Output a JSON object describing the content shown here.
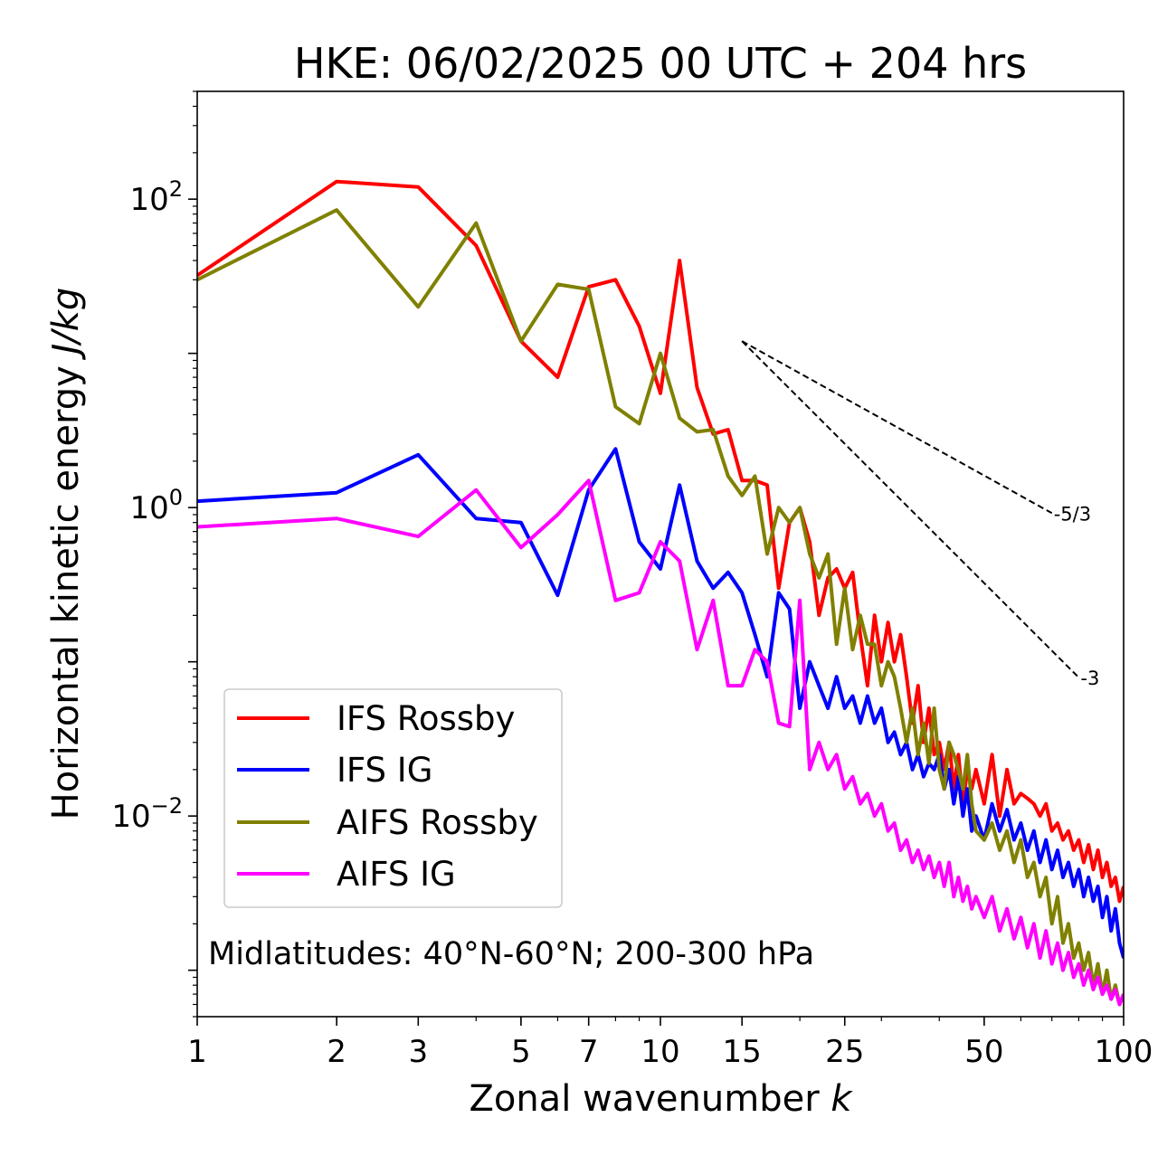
{
  "chart_data": {
    "type": "line",
    "title": "HKE: 06/02/2025 00 UTC + 204 hrs",
    "xlabel_text": "Zonal wavenumber ",
    "xlabel_var": "k",
    "ylabel_text": "Horizontal kinetic energy ",
    "ylabel_unit": "J/kg",
    "xscale": "log",
    "yscale": "log",
    "xlim": [
      1,
      100
    ],
    "ylim": [
      0.0005,
      500
    ],
    "x_ticks": [
      1,
      2,
      3,
      5,
      7,
      10,
      15,
      25,
      50,
      100
    ],
    "x_tick_labels": [
      "1",
      "2",
      "3",
      "5",
      "7",
      "10",
      "15",
      "25",
      "50",
      "100"
    ],
    "y_ticks": [
      {
        "value": 100,
        "base": "10",
        "exp": "2"
      },
      {
        "value": 1,
        "base": "10",
        "exp": "0"
      },
      {
        "value": 0.01,
        "base": "10",
        "exp": "−2"
      }
    ],
    "legend_position": "lower-left",
    "annotation": "Midlatitudes: 40°N-60°N; 200-300 hPa",
    "reference_lines": [
      {
        "label": "-5/3",
        "slope": -1.6667,
        "x_start": 15,
        "y_start": 12,
        "x_end": 70
      },
      {
        "label": "-3",
        "slope": -3,
        "x_start": 15,
        "y_start": 12,
        "x_end": 80
      }
    ],
    "series": [
      {
        "name": "IFS Rossby",
        "color": "#ff0000",
        "points": [
          [
            1,
            32
          ],
          [
            2,
            130
          ],
          [
            3,
            120
          ],
          [
            4,
            50
          ],
          [
            5,
            12
          ],
          [
            6,
            7
          ],
          [
            7,
            27
          ],
          [
            8,
            30
          ],
          [
            9,
            15
          ],
          [
            10,
            5.5
          ],
          [
            11,
            40
          ],
          [
            12,
            6
          ],
          [
            13,
            3
          ],
          [
            14,
            3.2
          ],
          [
            15,
            1.5
          ],
          [
            16,
            1.5
          ],
          [
            17,
            1.4
          ],
          [
            18,
            0.3
          ],
          [
            19,
            0.8
          ],
          [
            20,
            1
          ],
          [
            21,
            0.6
          ],
          [
            22,
            0.2
          ],
          [
            23,
            0.35
          ],
          [
            24,
            0.4
          ],
          [
            25,
            0.3
          ],
          [
            26,
            0.38
          ],
          [
            27,
            0.15
          ],
          [
            28,
            0.07
          ],
          [
            29,
            0.2
          ],
          [
            30,
            0.1
          ],
          [
            31,
            0.18
          ],
          [
            32,
            0.1
          ],
          [
            33,
            0.15
          ],
          [
            34,
            0.08
          ],
          [
            35,
            0.04
          ],
          [
            36,
            0.07
          ],
          [
            37,
            0.03
          ],
          [
            38,
            0.05
          ],
          [
            39,
            0.025
          ],
          [
            40,
            0.03
          ],
          [
            41,
            0.02
          ],
          [
            42,
            0.03
          ],
          [
            43,
            0.015
          ],
          [
            44,
            0.025
          ],
          [
            45,
            0.012
          ],
          [
            46,
            0.02
          ],
          [
            47,
            0.015
          ],
          [
            48,
            0.02
          ],
          [
            50,
            0.012
          ],
          [
            52,
            0.025
          ],
          [
            54,
            0.01
          ],
          [
            56,
            0.02
          ],
          [
            58,
            0.012
          ],
          [
            60,
            0.014
          ],
          [
            62,
            0.013
          ],
          [
            64,
            0.012
          ],
          [
            66,
            0.01
          ],
          [
            68,
            0.012
          ],
          [
            70,
            0.008
          ],
          [
            72,
            0.009
          ],
          [
            74,
            0.007
          ],
          [
            76,
            0.008
          ],
          [
            78,
            0.006
          ],
          [
            80,
            0.007
          ],
          [
            82,
            0.005
          ],
          [
            84,
            0.0065
          ],
          [
            86,
            0.0045
          ],
          [
            88,
            0.006
          ],
          [
            90,
            0.004
          ],
          [
            92,
            0.005
          ],
          [
            94,
            0.0035
          ],
          [
            96,
            0.004
          ],
          [
            98,
            0.0028
          ],
          [
            100,
            0.0035
          ]
        ]
      },
      {
        "name": "IFS IG",
        "color": "#0000ff",
        "points": [
          [
            1,
            1.1
          ],
          [
            2,
            1.25
          ],
          [
            3,
            2.2
          ],
          [
            4,
            0.85
          ],
          [
            5,
            0.8
          ],
          [
            6,
            0.27
          ],
          [
            7,
            1.3
          ],
          [
            8,
            2.4
          ],
          [
            9,
            0.6
          ],
          [
            10,
            0.4
          ],
          [
            11,
            1.4
          ],
          [
            12,
            0.45
          ],
          [
            13,
            0.3
          ],
          [
            14,
            0.38
          ],
          [
            15,
            0.28
          ],
          [
            16,
            0.15
          ],
          [
            17,
            0.08
          ],
          [
            18,
            0.28
          ],
          [
            19,
            0.22
          ],
          [
            20,
            0.05
          ],
          [
            21,
            0.1
          ],
          [
            22,
            0.07
          ],
          [
            23,
            0.05
          ],
          [
            24,
            0.08
          ],
          [
            25,
            0.05
          ],
          [
            26,
            0.06
          ],
          [
            27,
            0.04
          ],
          [
            28,
            0.06
          ],
          [
            29,
            0.04
          ],
          [
            30,
            0.05
          ],
          [
            31,
            0.03
          ],
          [
            32,
            0.035
          ],
          [
            33,
            0.025
          ],
          [
            34,
            0.03
          ],
          [
            35,
            0.02
          ],
          [
            36,
            0.025
          ],
          [
            37,
            0.018
          ],
          [
            38,
            0.022
          ],
          [
            39,
            0.02
          ],
          [
            40,
            0.025
          ],
          [
            41,
            0.015
          ],
          [
            42,
            0.02
          ],
          [
            43,
            0.012
          ],
          [
            44,
            0.018
          ],
          [
            45,
            0.01
          ],
          [
            46,
            0.015
          ],
          [
            47,
            0.008
          ],
          [
            48,
            0.01
          ],
          [
            50,
            0.007
          ],
          [
            52,
            0.012
          ],
          [
            54,
            0.008
          ],
          [
            56,
            0.011
          ],
          [
            58,
            0.007
          ],
          [
            60,
            0.009
          ],
          [
            62,
            0.006
          ],
          [
            64,
            0.008
          ],
          [
            66,
            0.005
          ],
          [
            68,
            0.007
          ],
          [
            70,
            0.0045
          ],
          [
            72,
            0.006
          ],
          [
            74,
            0.004
          ],
          [
            76,
            0.005
          ],
          [
            78,
            0.0035
          ],
          [
            80,
            0.0045
          ],
          [
            82,
            0.003
          ],
          [
            84,
            0.004
          ],
          [
            86,
            0.0028
          ],
          [
            88,
            0.0035
          ],
          [
            90,
            0.0022
          ],
          [
            92,
            0.003
          ],
          [
            94,
            0.0018
          ],
          [
            96,
            0.0025
          ],
          [
            98,
            0.0015
          ],
          [
            100,
            0.0012
          ]
        ]
      },
      {
        "name": "AIFS Rossby",
        "color": "#808000",
        "points": [
          [
            1,
            30
          ],
          [
            2,
            85
          ],
          [
            3,
            20
          ],
          [
            4,
            70
          ],
          [
            5,
            12
          ],
          [
            6,
            28
          ],
          [
            7,
            26
          ],
          [
            8,
            4.5
          ],
          [
            9,
            3.5
          ],
          [
            10,
            10
          ],
          [
            11,
            3.8
          ],
          [
            12,
            3.1
          ],
          [
            13,
            3.2
          ],
          [
            14,
            1.6
          ],
          [
            15,
            1.2
          ],
          [
            16,
            1.6
          ],
          [
            17,
            0.5
          ],
          [
            18,
            1
          ],
          [
            19,
            0.8
          ],
          [
            20,
            1
          ],
          [
            21,
            0.5
          ],
          [
            22,
            0.35
          ],
          [
            23,
            0.5
          ],
          [
            24,
            0.13
          ],
          [
            25,
            0.3
          ],
          [
            26,
            0.12
          ],
          [
            27,
            0.2
          ],
          [
            28,
            0.13
          ],
          [
            29,
            0.13
          ],
          [
            30,
            0.07
          ],
          [
            31,
            0.1
          ],
          [
            32,
            0.08
          ],
          [
            33,
            0.05
          ],
          [
            34,
            0.03
          ],
          [
            35,
            0.05
          ],
          [
            36,
            0.025
          ],
          [
            37,
            0.04
          ],
          [
            38,
            0.022
          ],
          [
            39,
            0.05
          ],
          [
            40,
            0.02
          ],
          [
            41,
            0.015
          ],
          [
            42,
            0.03
          ],
          [
            43,
            0.025
          ],
          [
            44,
            0.02
          ],
          [
            45,
            0.015
          ],
          [
            46,
            0.025
          ],
          [
            47,
            0.012
          ],
          [
            48,
            0.008
          ],
          [
            50,
            0.007
          ],
          [
            52,
            0.009
          ],
          [
            54,
            0.006
          ],
          [
            56,
            0.008
          ],
          [
            58,
            0.005
          ],
          [
            60,
            0.007
          ],
          [
            62,
            0.004
          ],
          [
            64,
            0.005
          ],
          [
            66,
            0.003
          ],
          [
            68,
            0.004
          ],
          [
            70,
            0.002
          ],
          [
            72,
            0.003
          ],
          [
            74,
            0.0015
          ],
          [
            76,
            0.002
          ],
          [
            78,
            0.0012
          ],
          [
            80,
            0.0015
          ],
          [
            82,
            0.001
          ],
          [
            84,
            0.0013
          ],
          [
            86,
            0.0008
          ],
          [
            88,
            0.0011
          ],
          [
            90,
            0.0007
          ],
          [
            92,
            0.001
          ],
          [
            94,
            0.00065
          ],
          [
            96,
            0.0008
          ],
          [
            98,
            0.0006
          ],
          [
            100,
            0.0007
          ]
        ]
      },
      {
        "name": "AIFS IG",
        "color": "#ff00ff",
        "points": [
          [
            1,
            0.75
          ],
          [
            2,
            0.85
          ],
          [
            3,
            0.65
          ],
          [
            4,
            1.3
          ],
          [
            5,
            0.55
          ],
          [
            6,
            0.9
          ],
          [
            7,
            1.5
          ],
          [
            8,
            0.25
          ],
          [
            9,
            0.28
          ],
          [
            10,
            0.6
          ],
          [
            11,
            0.45
          ],
          [
            12,
            0.12
          ],
          [
            13,
            0.25
          ],
          [
            14,
            0.07
          ],
          [
            15,
            0.07
          ],
          [
            16,
            0.12
          ],
          [
            17,
            0.1
          ],
          [
            18,
            0.04
          ],
          [
            19,
            0.038
          ],
          [
            20,
            0.25
          ],
          [
            21,
            0.02
          ],
          [
            22,
            0.03
          ],
          [
            23,
            0.02
          ],
          [
            24,
            0.025
          ],
          [
            25,
            0.015
          ],
          [
            26,
            0.018
          ],
          [
            27,
            0.012
          ],
          [
            28,
            0.014
          ],
          [
            29,
            0.01
          ],
          [
            30,
            0.012
          ],
          [
            31,
            0.008
          ],
          [
            32,
            0.009
          ],
          [
            33,
            0.006
          ],
          [
            34,
            0.007
          ],
          [
            35,
            0.005
          ],
          [
            36,
            0.006
          ],
          [
            37,
            0.0045
          ],
          [
            38,
            0.0055
          ],
          [
            39,
            0.004
          ],
          [
            40,
            0.005
          ],
          [
            41,
            0.0035
          ],
          [
            42,
            0.005
          ],
          [
            43,
            0.003
          ],
          [
            44,
            0.004
          ],
          [
            45,
            0.0028
          ],
          [
            46,
            0.0035
          ],
          [
            47,
            0.0025
          ],
          [
            48,
            0.003
          ],
          [
            50,
            0.0022
          ],
          [
            52,
            0.003
          ],
          [
            54,
            0.0018
          ],
          [
            56,
            0.0025
          ],
          [
            58,
            0.0016
          ],
          [
            60,
            0.0022
          ],
          [
            62,
            0.0014
          ],
          [
            64,
            0.002
          ],
          [
            66,
            0.0012
          ],
          [
            68,
            0.0018
          ],
          [
            70,
            0.0011
          ],
          [
            72,
            0.0015
          ],
          [
            74,
            0.001
          ],
          [
            76,
            0.0013
          ],
          [
            78,
            0.0009
          ],
          [
            80,
            0.0011
          ],
          [
            82,
            0.0008
          ],
          [
            84,
            0.001
          ],
          [
            86,
            0.00075
          ],
          [
            88,
            0.0009
          ],
          [
            90,
            0.0007
          ],
          [
            92,
            0.0008
          ],
          [
            94,
            0.00065
          ],
          [
            96,
            0.00075
          ],
          [
            98,
            0.0006
          ],
          [
            100,
            0.0007
          ]
        ]
      }
    ]
  }
}
